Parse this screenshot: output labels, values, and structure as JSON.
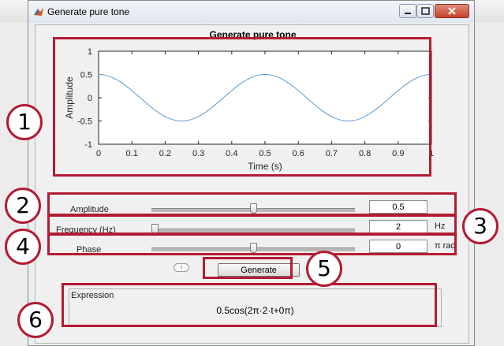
{
  "window": {
    "title": "Generate pure tone"
  },
  "figure": {
    "title": "Generate pure tone"
  },
  "chart_data": {
    "type": "line",
    "title": "Generate pure tone",
    "xlabel": "Time (s)",
    "ylabel": "Amplitude",
    "xlim": [
      0,
      1
    ],
    "ylim": [
      -1,
      1
    ],
    "xticks": [
      "0",
      "0.1",
      "0.2",
      "0.3",
      "0.4",
      "0.5",
      "0.6",
      "0.7",
      "0.8",
      "0.9",
      "1"
    ],
    "yticks": [
      "1",
      "0.5",
      "0",
      "-0.5",
      "-1"
    ],
    "series": [
      {
        "amplitude": 0.5,
        "frequency_hz": 2,
        "phase_pi_rad": 0,
        "x": [
          0,
          0.125,
          0.25,
          0.375,
          0.5,
          0.625,
          0.75,
          0.875,
          1.0
        ],
        "y": [
          0.5,
          0,
          -0.5,
          0,
          0.5,
          0,
          -0.5,
          0,
          0.5
        ],
        "color": "#5b9bd5"
      }
    ]
  },
  "controls": {
    "amplitude": {
      "label": "Amplitude",
      "value": "0.5",
      "slider_fraction": 0.5
    },
    "frequency": {
      "label": "Frequency (Hz)",
      "value": "2",
      "unit": "Hz",
      "slider_fraction": 0.0
    },
    "phase": {
      "label": "Phase",
      "value": "0",
      "unit": "π rad",
      "slider_fraction": 0.5
    }
  },
  "buttons": {
    "info_label": "i",
    "generate_label": "Generate"
  },
  "expression": {
    "header": "Expression",
    "value": "0.5cos(2π·2·t+0π)"
  },
  "callouts": [
    "1",
    "2",
    "3",
    "4",
    "5",
    "6"
  ],
  "colors": {
    "callout": "#b31b34",
    "line": "#5b9bd5"
  }
}
